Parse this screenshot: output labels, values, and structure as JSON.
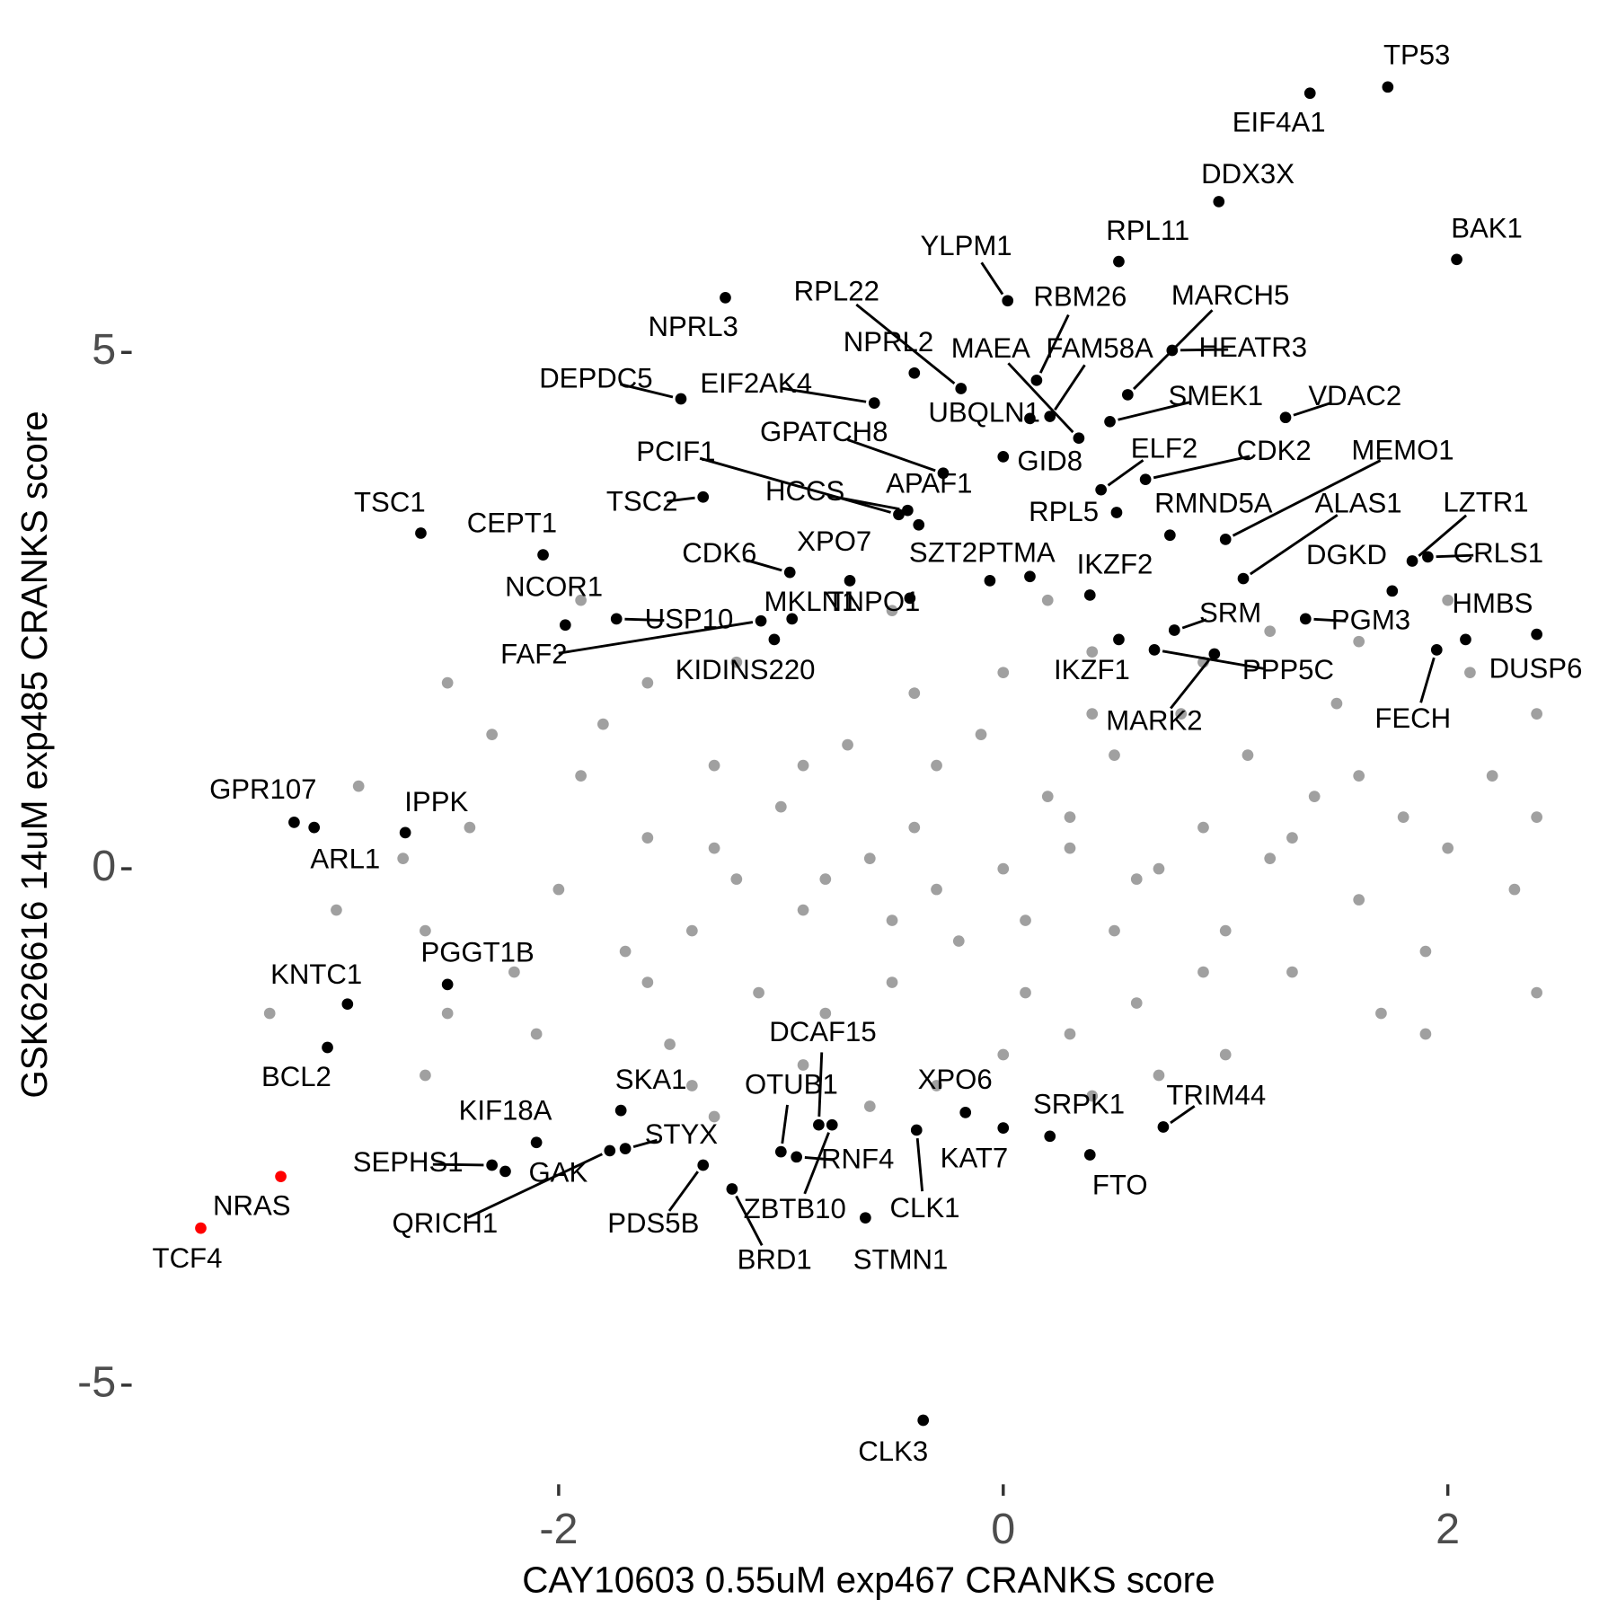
{
  "chart_data": {
    "type": "scatter",
    "xlabel": "CAY10603 0.55uM exp467 CRANKS score",
    "ylabel": "GSK626616 14uM exp485 CRANKS score",
    "xlim": [
      -3.9,
      2.5
    ],
    "ylim": [
      -5.85,
      7.8
    ],
    "xticks": [
      -2,
      0,
      2
    ],
    "yticks": [
      -5,
      0,
      5
    ],
    "grid": false,
    "background": {
      "color": "#a0a0a0",
      "x": [
        0,
        0.3,
        -0.3,
        0.6,
        -0.6,
        0.2,
        -0.2,
        0.9,
        -0.9,
        1.2,
        -1.2,
        0.5,
        -0.5,
        1.0,
        -1.0,
        0.1,
        -0.1,
        1.4,
        -1.4,
        0.8,
        -0.8,
        1.6,
        -1.6,
        0.3,
        -0.4,
        1.1,
        -1.1,
        1.8,
        -1.7,
        0.6,
        -0.7,
        1.3,
        -1.3,
        0.0,
        0.0,
        2.0,
        -2.0,
        1.5,
        -1.5,
        0.4,
        -0.3,
        1.9,
        -1.9,
        2.2,
        -2.2,
        0.9,
        -0.9,
        1.7,
        -1.8,
        2.3,
        -2.4,
        0.7,
        -1.2,
        1.2,
        -1.4,
        2.1,
        -2.3,
        0.2,
        -0.5,
        1.6,
        -2.6,
        2.4,
        -2.7,
        -0.6,
        0.4,
        1.0,
        -1.6,
        0.3,
        -0.4,
        0.7,
        -0.8,
        0.1,
        0.5,
        -0.5,
        0.4,
        -0.3,
        1.3,
        -1.3,
        0.9,
        -0.9,
        1.6,
        -1.6,
        -2.5,
        -2.9,
        -3.0,
        2.4,
        2.4,
        -2.1,
        -1.9,
        -1.3,
        -2.5,
        2.0,
        1.9,
        -3.3,
        -2.6
      ],
      "y": [
        0,
        0.2,
        -0.2,
        -0.1,
        0.1,
        0.7,
        -0.7,
        0.4,
        -0.4,
        0.1,
        -0.1,
        1.1,
        -1.1,
        -0.6,
        0.6,
        -1.2,
        1.3,
        0.7,
        -0.6,
        1.5,
        -1.4,
        -0.3,
        0.3,
        -1.6,
        1.7,
        1.1,
        -1.2,
        0.5,
        -0.8,
        -1.3,
        1.2,
        -1.0,
        1.0,
        1.9,
        -1.8,
        0.2,
        -0.2,
        1.6,
        -1.7,
        2.1,
        -2.1,
        -0.8,
        0.9,
        0.9,
        -1.0,
        2.0,
        -1.9,
        -1.4,
        1.4,
        -0.2,
        0.4,
        -2.0,
        2.0,
        2.3,
        -2.1,
        1.9,
        1.3,
        2.6,
        2.5,
        2.2,
        -0.6,
        0.5,
        0.1,
        -2.3,
        -2.2,
        -1.8,
        1.8,
        0.5,
        0.4,
        0.0,
        -0.1,
        -0.5,
        -0.6,
        -0.5,
        1.5,
        1.0,
        0.3,
        0.2,
        -1.0,
        1.0,
        0.9,
        -1.1,
        -1.4,
        0.8,
        -0.4,
        -1.2,
        1.5,
        -1.6,
        2.6,
        -2.4,
        1.8,
        2.6,
        -1.6,
        -1.4,
        -2.0
      ]
    },
    "genes": {
      "color": "#000000",
      "labels": [
        "TP53",
        "EIF4A1",
        "DDX3X",
        "BAK1",
        "RPL11",
        "YLPM1",
        "RBM26",
        "NPRL3",
        "NPRL2",
        "RPL22",
        "MAEA",
        "FAM58A",
        "UBQLN1",
        "MARCH5",
        "HEATR3",
        "SMEK1",
        "VDAC2",
        "DEPDC5",
        "EIF2AK4",
        "GPATCH8",
        "PCIF1",
        "GID8",
        "ELF2",
        "CDK2",
        "MEMO1",
        "TSC1",
        "CEPT1",
        "TSC2",
        "HCCS",
        "APAF1",
        "RPL5",
        "RMND5A",
        "ALAS1",
        "LZTR1",
        "CRLS1",
        "DGKD",
        "CDK6",
        "XPO7",
        "SZT2",
        "TNPO1",
        "PTMA",
        "IKZF2",
        "NCOR1",
        "FAF2",
        "USP10",
        "MKLN1",
        "KIDINS220",
        "SRM",
        "PGM3",
        "HMBS",
        "DUSP6",
        "FECH",
        "PPP5C",
        "IKZF1",
        "MARK2",
        "GPR107",
        "ARL1",
        "IPPK",
        "PGGT1B",
        "KNTC1",
        "BCL2",
        "KIF18A",
        "SKA1",
        "STYX",
        "SEPHS1",
        "GAK",
        "QRICH1",
        "PDS5B",
        "DCAF15",
        "OTUB1",
        "RNF4",
        "ZBTB10",
        "BRD1",
        "XPO6",
        "KAT7",
        "CLK1",
        "SRPK1",
        "TRIM44",
        "FTO",
        "STMN1",
        "CLK3"
      ],
      "x": [
        1.73,
        1.38,
        0.97,
        2.04,
        0.52,
        0.02,
        0.15,
        -1.25,
        -0.4,
        -0.19,
        0.34,
        0.21,
        0.12,
        0.56,
        0.76,
        0.48,
        1.27,
        -1.45,
        -0.58,
        -0.27,
        -0.47,
        0.0,
        0.44,
        0.64,
        1.0,
        -2.62,
        -2.07,
        -1.35,
        -0.43,
        -0.38,
        0.51,
        0.75,
        1.08,
        1.84,
        1.91,
        1.75,
        -0.96,
        -0.69,
        -0.06,
        -0.42,
        0.12,
        0.39,
        -1.97,
        -1.09,
        -1.74,
        -0.95,
        -1.03,
        0.77,
        1.36,
        2.08,
        2.4,
        1.95,
        0.68,
        0.52,
        0.95,
        -3.19,
        -3.1,
        -2.69,
        -2.5,
        -2.95,
        -3.04,
        -2.1,
        -1.72,
        -1.7,
        -2.3,
        -2.24,
        -1.77,
        -1.35,
        -0.83,
        -1.0,
        -0.93,
        -0.77,
        -1.22,
        -0.17,
        0.0,
        -0.39,
        0.21,
        0.72,
        0.39,
        -0.62,
        -0.36
      ],
      "y": [
        7.57,
        7.51,
        6.46,
        5.9,
        5.88,
        5.5,
        4.73,
        5.53,
        4.8,
        4.65,
        4.17,
        4.38,
        4.36,
        4.59,
        5.02,
        4.33,
        4.37,
        4.55,
        4.51,
        3.83,
        3.43,
        3.99,
        3.67,
        3.77,
        3.19,
        3.25,
        3.04,
        3.6,
        3.47,
        3.33,
        3.45,
        3.23,
        2.81,
        2.98,
        3.02,
        2.69,
        2.87,
        2.79,
        2.79,
        2.62,
        2.83,
        2.65,
        2.36,
        2.4,
        2.42,
        2.42,
        2.22,
        2.31,
        2.42,
        2.22,
        2.27,
        2.12,
        2.12,
        2.22,
        2.08,
        0.45,
        0.4,
        0.35,
        -1.12,
        -1.31,
        -1.73,
        -2.65,
        -2.34,
        -2.71,
        -2.87,
        -2.93,
        -2.73,
        -2.87,
        -2.48,
        -2.74,
        -2.79,
        -2.48,
        -3.1,
        -2.36,
        -2.51,
        -2.53,
        -2.59,
        -2.5,
        -2.77,
        -3.38,
        -5.34
      ]
    },
    "highlighted": {
      "color": "#ff0000",
      "labels": [
        "NRAS",
        "TCF4"
      ],
      "x": [
        -3.25,
        -3.61
      ],
      "y": [
        -2.98,
        -3.48
      ]
    }
  }
}
